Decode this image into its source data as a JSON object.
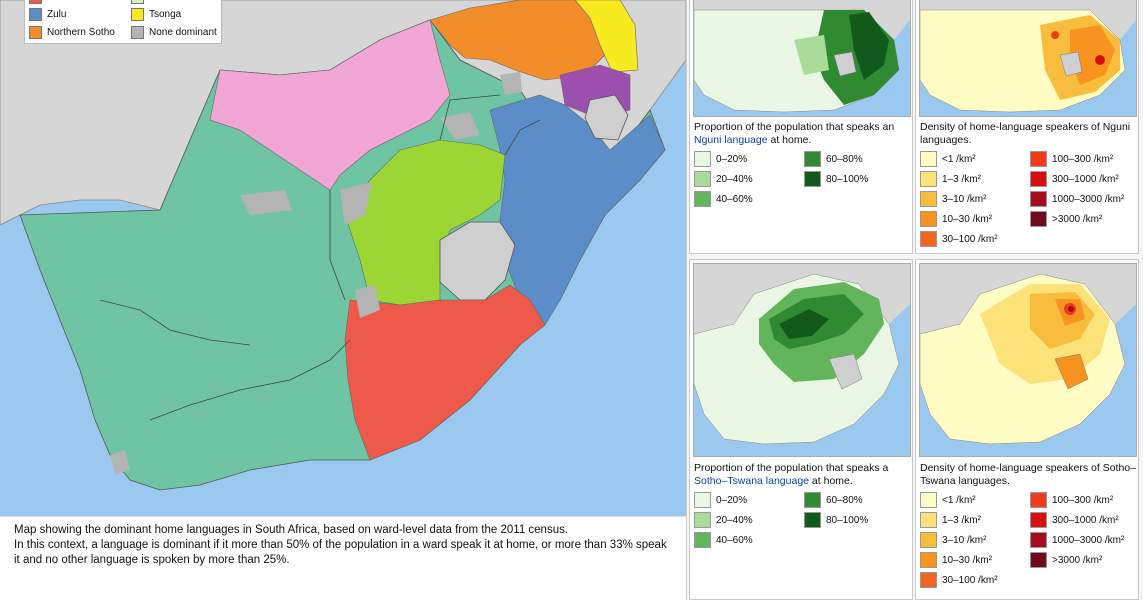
{
  "main_map": {
    "legend": [
      {
        "label": "Zulu",
        "color": "#5b8ec8"
      },
      {
        "label": "Tsonga",
        "color": "#f7ea1e"
      },
      {
        "label": "Northern Sotho",
        "color": "#f28d2a"
      },
      {
        "label": "None dominant",
        "color": "#b4b4b4"
      }
    ],
    "colors": {
      "ocean": "#9bc8ee",
      "land_outside": "#d6d6d6",
      "afrikaans": "#6fc4a4",
      "tswana": "#f2a6d6",
      "sesotho": "#9bd634",
      "xhosa": "#ee5a4a",
      "swati": "#9d4fb0"
    },
    "caption": [
      "Map showing the dominant home languages in South Africa, based on ward-level data from the 2011 census.",
      "In this context, a language is dominant if it more than 50% of the population in a ward speak it at home, or more than 33% speak it and no other language is spoken by more than 25%."
    ]
  },
  "panels": [
    {
      "caption_pre": "Proportion of the population that speaks an ",
      "caption_link": "Nguni language",
      "caption_post": " at home.",
      "legend": [
        {
          "label": "0–20%",
          "color": "#eaf7e4"
        },
        {
          "label": "60–80%",
          "color": "#2f8a32"
        },
        {
          "label": "20–40%",
          "color": "#a8dc98"
        },
        {
          "label": "80–100%",
          "color": "#115a1c"
        },
        {
          "label": "40–60%",
          "color": "#62b55a"
        }
      ]
    },
    {
      "caption_pre": "Density of home-language speakers of ",
      "caption_link": "Nguni languages.",
      "caption_post": "",
      "legend": [
        {
          "label": "<1 /km²",
          "color": "#fffcc4"
        },
        {
          "label": "100–300 /km²",
          "color": "#f03a1c"
        },
        {
          "label": "1–3 /km²",
          "color": "#fde27a"
        },
        {
          "label": "300–1000 /km²",
          "color": "#d50f0f"
        },
        {
          "label": "3–10 /km²",
          "color": "#f9bd3e"
        },
        {
          "label": "1000–3000 /km²",
          "color": "#a40d1c"
        },
        {
          "label": "10–30 /km²",
          "color": "#f8931f"
        },
        {
          "label": ">3000 /km²",
          "color": "#6f0a1c"
        },
        {
          "label": "30–100 /km²",
          "color": "#f26521"
        }
      ]
    },
    {
      "caption_pre": "Proportion of the population that speaks a ",
      "caption_link": "Sotho–Tswana language",
      "caption_post": " at home.",
      "legend": [
        {
          "label": "0–20%",
          "color": "#eaf7e4"
        },
        {
          "label": "60–80%",
          "color": "#2f8a32"
        },
        {
          "label": "20–40%",
          "color": "#a8dc98"
        },
        {
          "label": "80–100%",
          "color": "#115a1c"
        },
        {
          "label": "40–60%",
          "color": "#62b55a"
        }
      ]
    },
    {
      "caption_pre": "Density of home-language speakers of ",
      "caption_link": "Sotho–Tswana languages.",
      "caption_post": "",
      "legend": [
        {
          "label": "<1 /km²",
          "color": "#fffcc4"
        },
        {
          "label": "100–300 /km²",
          "color": "#f03a1c"
        },
        {
          "label": "1–3 /km²",
          "color": "#fde27a"
        },
        {
          "label": "300–1000 /km²",
          "color": "#d50f0f"
        },
        {
          "label": "3–10 /km²",
          "color": "#f9bd3e"
        },
        {
          "label": "1000–3000 /km²",
          "color": "#a40d1c"
        },
        {
          "label": "10–30 /km²",
          "color": "#f8931f"
        },
        {
          "label": ">3000 /km²",
          "color": "#6f0a1c"
        },
        {
          "label": "30–100 /km²",
          "color": "#f26521"
        }
      ]
    }
  ]
}
